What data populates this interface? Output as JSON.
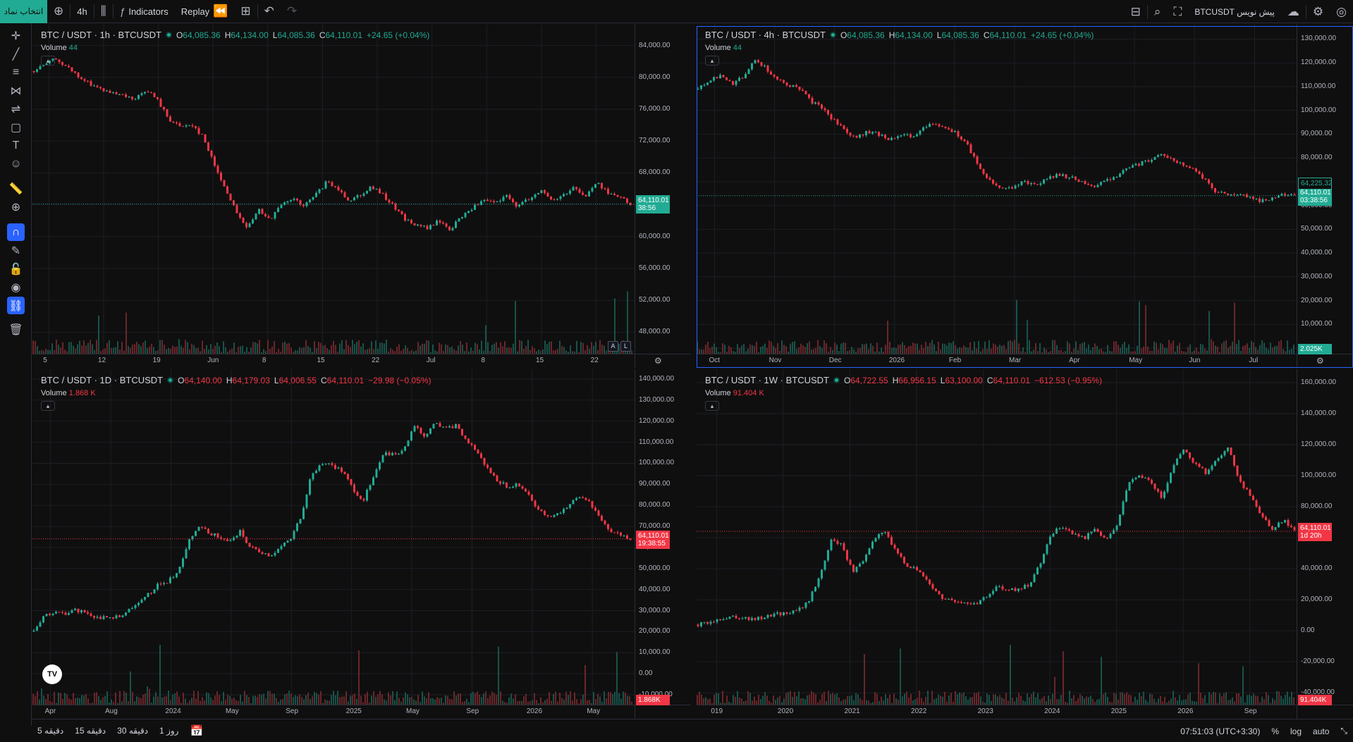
{
  "topbar": {
    "symbol_select_label": "انتخاب نماد",
    "interval": "4h",
    "indicators_label": "Indicators",
    "replay_label": "Replay",
    "symbol_name": "BTCUSDT پیش نویس"
  },
  "panes": [
    {
      "id": "p1",
      "title": "BTC / USDT · 1h · BTCUSDT",
      "ohlc": {
        "o": "64,085.36",
        "h": "64,134.00",
        "l": "64,085.36",
        "c": "64,110.01",
        "chg": "+24.65 (+0.04%)",
        "dir": "up"
      },
      "volume_label": "Volume",
      "volume_value": "44",
      "volume_dir": "up",
      "price_ticks": [
        "84,000.00",
        "80,000.00",
        "76,000.00",
        "72,000.00",
        "68,000.00",
        "64,000.00",
        "60,000.00",
        "56,000.00",
        "52,000.00",
        "48,000.00"
      ],
      "time_ticks": [
        "5",
        "12",
        "19",
        "Jun",
        "8",
        "15",
        "22",
        "Jul",
        "8",
        "15",
        "22"
      ],
      "last_price": "64,110.01",
      "countdown": "38:56",
      "tag_color": "#22ab94",
      "scale_buttons": [
        "A",
        "L"
      ],
      "chart_data": {
        "type": "line",
        "series": [
          {
            "values": [
              80800,
              81600,
              82400,
              81200,
              80000,
              79200,
              78500,
              77900,
              77600,
              77200,
              78500,
              77100,
              74800,
              73800,
              74200,
              72600,
              69200,
              66100,
              63000,
              61100,
              63400,
              62300,
              63900,
              64800,
              63800,
              65200,
              66800,
              66000,
              64600,
              65300,
              66300,
              65200,
              63800,
              62200,
              61400,
              61100,
              62000,
              60900,
              62500,
              63700,
              64500,
              64200,
              65100,
              63800,
              64800,
              65900,
              64500,
              65200,
              66300,
              65000,
              66800,
              65600,
              65000,
              64100
            ]
          }
        ],
        "ylim": [
          46000,
          86000
        ]
      }
    },
    {
      "id": "p2",
      "title": "BTC / USDT · 4h · BTCUSDT",
      "ohlc": {
        "o": "64,085.36",
        "h": "64,134.00",
        "l": "64,085.36",
        "c": "64,110.01",
        "chg": "+24.65 (+0.04%)",
        "dir": "up"
      },
      "volume_label": "Volume",
      "volume_value": "44",
      "volume_dir": "up",
      "price_ticks": [
        "130,000.00",
        "120,000.00",
        "110,000.00",
        "100,000.00",
        "90,000.00",
        "80,000.00",
        "70,000.00",
        "60,000.00",
        "50,000.00",
        "40,000.00",
        "30,000.00",
        "20,000.00",
        "10,000.00",
        "0.00"
      ],
      "time_ticks": [
        "Oct",
        "Nov",
        "Dec",
        "2026",
        "Feb",
        "Mar",
        "Apr",
        "May",
        "Jun",
        "Jul"
      ],
      "last_price": "64,110.01",
      "countdown": "03:38:56",
      "secondary_price": "64,225.32",
      "volume_tag": "2.025K",
      "tag_color": "#22ab94",
      "chart_data": {
        "type": "line",
        "series": [
          {
            "values": [
              109000,
              112000,
              115000,
              111000,
              114000,
              122000,
              118000,
              113000,
              111000,
              109000,
              104000,
              101000,
              96000,
              92000,
              88000,
              91000,
              90000,
              88000,
              90000,
              89000,
              92000,
              95000,
              93000,
              90000,
              85000,
              76000,
              70000,
              67000,
              68000,
              70000,
              69000,
              71000,
              73000,
              72000,
              70000,
              68000,
              70000,
              72000,
              75000,
              77000,
              79000,
              81000,
              80000,
              77000,
              75000,
              71000,
              66000,
              64000,
              65000,
              63000,
              62000,
              63000,
              65000,
              64100
            ]
          }
        ],
        "ylim": [
          0,
          134000
        ]
      }
    },
    {
      "id": "p3",
      "title": "BTC / USDT · 1D · BTCUSDT",
      "ohlc": {
        "o": "64,140.00",
        "h": "64,179.03",
        "l": "64,006.55",
        "c": "64,110.01",
        "chg": "−29.98 (−0.05%)",
        "dir": "down"
      },
      "volume_label": "Volume",
      "volume_value": "1.868 K",
      "volume_dir": "down",
      "price_ticks": [
        "140,000.00",
        "130,000.00",
        "120,000.00",
        "110,000.00",
        "100,000.00",
        "90,000.00",
        "80,000.00",
        "70,000.00",
        "60,000.00",
        "50,000.00",
        "40,000.00",
        "30,000.00",
        "20,000.00",
        "10,000.00",
        "0.00",
        "-10,000.00"
      ],
      "time_ticks": [
        "Apr",
        "Aug",
        "2024",
        "May",
        "Sep",
        "2025",
        "May",
        "Sep",
        "2026",
        "May"
      ],
      "last_price": "64,110.01",
      "countdown": "19:38:55",
      "volume_tag": "1.868K",
      "tag_color": "#f23645",
      "chart_data": {
        "type": "line",
        "series": [
          {
            "values": [
              20000,
              28000,
              29000,
              28500,
              30000,
              29000,
              27000,
              26500,
              27000,
              29000,
              34000,
              37000,
              42000,
              44000,
              48000,
              63000,
              70000,
              67000,
              65000,
              62000,
              68000,
              60000,
              58000,
              56000,
              60000,
              64000,
              75000,
              95000,
              100000,
              99000,
              96000,
              88000,
              82000,
              94000,
              105000,
              104000,
              107000,
              118000,
              113000,
              120000,
              116000,
              118000,
              111000,
              106000,
              98000,
              92000,
              89000,
              90000,
              86000,
              78000,
              74000,
              76000,
              80000,
              84000,
              82000,
              74000,
              68000,
              66000,
              64100
            ]
          }
        ],
        "ylim": [
          -12000,
          142000
        ]
      }
    },
    {
      "id": "p4",
      "title": "BTC / USDT · 1W · BTCUSDT",
      "ohlc": {
        "o": "64,722.55",
        "h": "66,956.15",
        "l": "63,100.00",
        "c": "64,110.01",
        "chg": "−612.53 (−0.95%)",
        "dir": "down"
      },
      "volume_label": "Volume",
      "volume_value": "91.404 K",
      "volume_dir": "down",
      "price_ticks": [
        "160,000.00",
        "140,000.00",
        "120,000.00",
        "100,000.00",
        "80,000.00",
        "60,000.00",
        "40,000.00",
        "20,000.00",
        "0.00",
        "-20,000.00",
        "-40,000.00"
      ],
      "time_ticks": [
        "019",
        "2020",
        "2021",
        "2022",
        "2023",
        "2024",
        "2025",
        "2026",
        "Sep"
      ],
      "last_price": "64,110.01",
      "countdown": "1d 20h",
      "volume_tag": "91.404K",
      "tag_color": "#f23645",
      "chart_data": {
        "type": "line",
        "series": [
          {
            "values": [
              4000,
              5000,
              8000,
              9500,
              9000,
              7000,
              9000,
              11000,
              11500,
              13000,
              19000,
              35000,
              58000,
              56000,
              38000,
              45000,
              60000,
              64000,
              50000,
              42000,
              38000,
              30000,
              22000,
              20000,
              18000,
              17000,
              21000,
              28000,
              27000,
              26000,
              30000,
              43000,
              63000,
              67000,
              62000,
              60000,
              66000,
              58000,
              70000,
              95000,
              100000,
              96000,
              85000,
              105000,
              118000,
              107000,
              102000,
              110000,
              118000,
              96000,
              88000,
              74000,
              66000,
              72000,
              64100
            ]
          }
        ],
        "ylim": [
          -44000,
          165000
        ]
      }
    }
  ],
  "bottombar": {
    "ranges": [
      "5 دقیقه",
      "15 دقیقه",
      "30 دقیقه",
      "1 روز"
    ],
    "clock": "07:51:03 (UTC+3:30)",
    "percent": "%",
    "log": "log",
    "auto": "auto"
  },
  "logo_text": "TV"
}
